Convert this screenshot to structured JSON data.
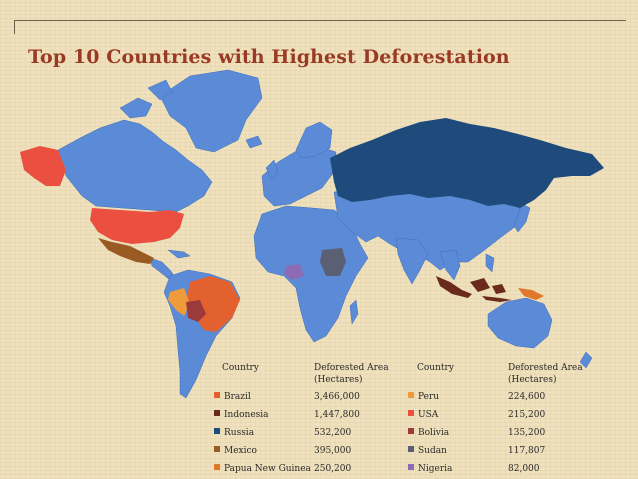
{
  "title": "Top 10 Countries with Highest Deforestation",
  "map": {
    "base_color": "#5b8bd6",
    "ocean": "none"
  },
  "legend": {
    "headers": {
      "country": "Country",
      "area_line1": "Deforested Area",
      "area_line2": "(Hectares)"
    },
    "countries": [
      {
        "name": "Brazil",
        "area": "3,466,000",
        "color": "#e3612f"
      },
      {
        "name": "Indonesia",
        "area": "1,447,800",
        "color": "#6a2a1c"
      },
      {
        "name": "Russia",
        "area": "532,200",
        "color": "#1f4a7c"
      },
      {
        "name": "Mexico",
        "area": "395,000",
        "color": "#9a5a23"
      },
      {
        "name": "Papua New Guinea",
        "area": "250,200",
        "color": "#e0772a"
      },
      {
        "name": "Peru",
        "area": "224,600",
        "color": "#ef9a3b"
      },
      {
        "name": "USA",
        "area": "215,200",
        "color": "#ea4f3f"
      },
      {
        "name": "Bolivia",
        "area": "135,200",
        "color": "#9b3a3a"
      },
      {
        "name": "Sudan",
        "area": "117,807",
        "color": "#5a5f73"
      },
      {
        "name": "Nigeria",
        "area": "82,000",
        "color": "#8c6bb2"
      }
    ]
  }
}
